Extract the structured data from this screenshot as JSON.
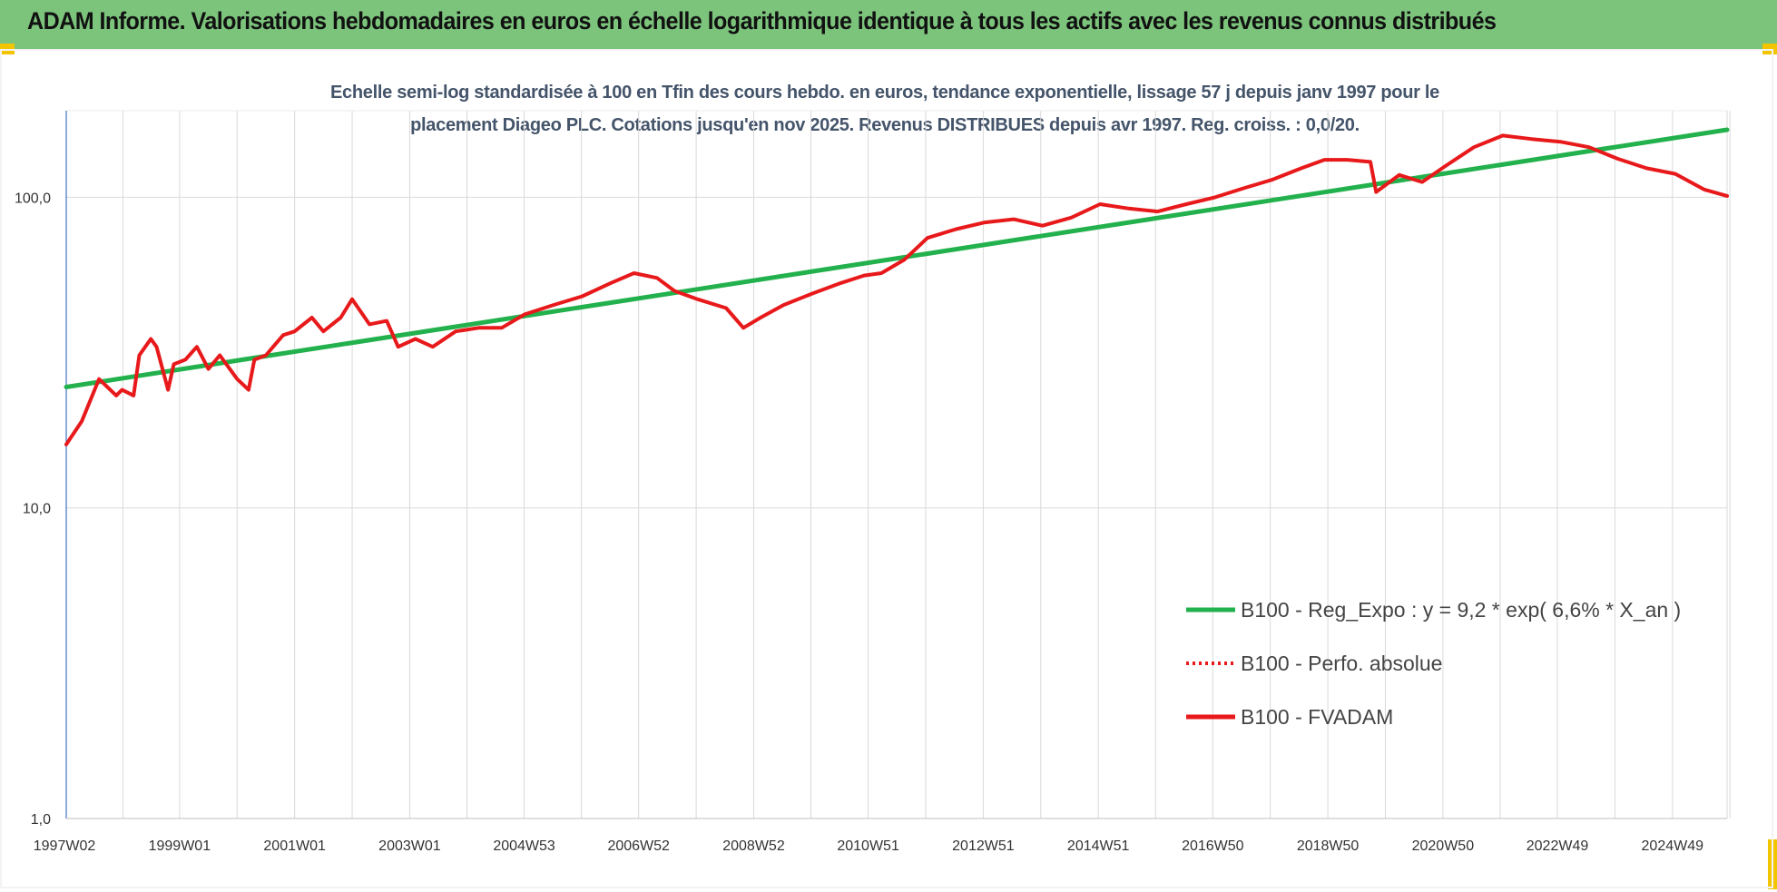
{
  "header": {
    "title": "ADAM Informe. Valorisations hebdomadaires en euros en échelle logarithmique identique à tous les actifs avec les revenus connus distribués"
  },
  "chart_data": {
    "type": "line",
    "title": "",
    "subtitle_lines": [
      "Echelle semi-log standardisée à 100 en Tfin des cours hebdo. en euros, tendance exponentielle, lissage 57 j depuis janv 1997 pour le",
      "placement Diageo PLC. Cotations jusqu'en nov 2025. Revenus DISTRIBUES depuis avr 1997. Reg. croiss. : 0,0/20."
    ],
    "y_scale": "log",
    "ylim": [
      1,
      190
    ],
    "xlim": [
      1997.03,
      2025.9
    ],
    "y_ticks": [
      {
        "value": 1,
        "label": "1,0"
      },
      {
        "value": 10,
        "label": "10,0"
      },
      {
        "value": 100,
        "label": "100,0"
      }
    ],
    "x_ticks": [
      {
        "value": 1997.03,
        "label": "1997W02"
      },
      {
        "value": 1999.0,
        "label": "1999W01"
      },
      {
        "value": 2001.0,
        "label": "2001W01"
      },
      {
        "value": 2003.0,
        "label": "2003W01"
      },
      {
        "value": 2004.99,
        "label": "2004W53"
      },
      {
        "value": 2006.98,
        "label": "2006W52"
      },
      {
        "value": 2008.98,
        "label": "2008W52"
      },
      {
        "value": 2010.97,
        "label": "2010W51"
      },
      {
        "value": 2012.97,
        "label": "2012W51"
      },
      {
        "value": 2014.97,
        "label": "2014W51"
      },
      {
        "value": 2016.96,
        "label": "2016W50"
      },
      {
        "value": 2018.96,
        "label": "2018W50"
      },
      {
        "value": 2020.96,
        "label": "2020W50"
      },
      {
        "value": 2022.95,
        "label": "2022W49"
      },
      {
        "value": 2024.95,
        "label": "2024W49"
      }
    ],
    "grid": "vertical-and-horizontal",
    "legend_position": "lower-right",
    "series": [
      {
        "name": "B100 - Reg_Expo : y = 9,2 * exp( 6,6% *  X_an )",
        "color": "#22b14c",
        "style": "solid",
        "x": [
          1997.03,
          2025.9
        ],
        "values": [
          24.5,
          165
        ]
      },
      {
        "name": "B100 - Perfo. absolue",
        "color": "#e8191b",
        "style": "dotted",
        "x": [],
        "values": []
      },
      {
        "name": "B100 - FVADAM",
        "color": "#e8191b",
        "style": "solid",
        "x": [
          1997.03,
          1997.3,
          1997.6,
          1997.9,
          1998.0,
          1998.2,
          1998.3,
          1998.5,
          1998.6,
          1998.8,
          1998.9,
          1999.1,
          1999.3,
          1999.5,
          1999.7,
          2000.0,
          2000.2,
          2000.3,
          2000.5,
          2000.8,
          2001.0,
          2001.3,
          2001.5,
          2001.8,
          2002.0,
          2002.3,
          2002.6,
          2002.8,
          2003.1,
          2003.4,
          2003.8,
          2004.2,
          2004.6,
          2005.0,
          2005.5,
          2006.0,
          2006.5,
          2006.9,
          2007.3,
          2007.6,
          2008.0,
          2008.5,
          2008.8,
          2009.1,
          2009.5,
          2010.0,
          2010.5,
          2010.9,
          2011.2,
          2011.6,
          2012.0,
          2012.5,
          2013.0,
          2013.5,
          2014.0,
          2014.5,
          2015.0,
          2015.5,
          2016.0,
          2016.5,
          2017.0,
          2017.5,
          2018.0,
          2018.5,
          2018.9,
          2019.3,
          2019.7,
          2019.8,
          2020.2,
          2020.6,
          2021.0,
          2021.5,
          2022.0,
          2022.5,
          2023.0,
          2023.5,
          2024.0,
          2024.5,
          2025.0,
          2025.5,
          2025.9
        ],
        "values": [
          16,
          19,
          26,
          23,
          24,
          23,
          31,
          35,
          33,
          24,
          29,
          30,
          33,
          28,
          31,
          26,
          24,
          30,
          31,
          36,
          37,
          41,
          37,
          41,
          47,
          39,
          40,
          33,
          35,
          33,
          37,
          38,
          38,
          42,
          45,
          48,
          53,
          57,
          55,
          50,
          47,
          44,
          38,
          41,
          45,
          49,
          53,
          56,
          57,
          63,
          74,
          79,
          83,
          85,
          81,
          86,
          95,
          92,
          90,
          95,
          100,
          107,
          114,
          124,
          132,
          132,
          130,
          104,
          118,
          112,
          126,
          145,
          158,
          154,
          151,
          145,
          133,
          124,
          119,
          106,
          101
        ]
      }
    ]
  }
}
